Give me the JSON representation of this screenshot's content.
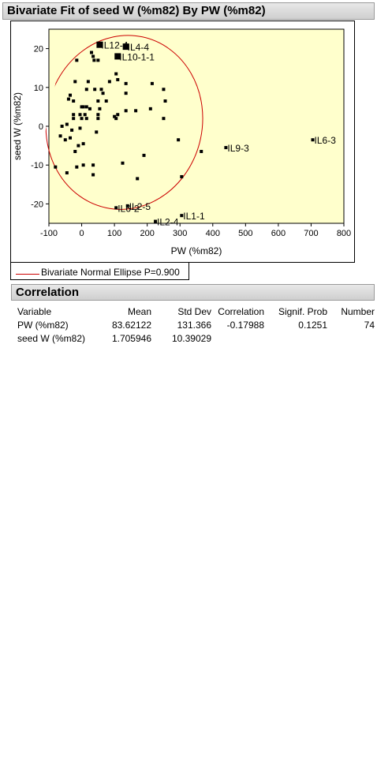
{
  "header": {
    "title": "Bivariate Fit of seed W  (%m82) By PW (%m82)"
  },
  "legend": {
    "label": "Bivariate Normal Ellipse P=0.900",
    "color": "#cc0000"
  },
  "correlation": {
    "title": "Correlation",
    "columns": [
      "Variable",
      "Mean",
      "Std Dev",
      "Correlation",
      "Signif. Prob",
      "Number"
    ],
    "rows": [
      [
        "PW (%m82)",
        "83.62122",
        "131.366",
        "-0.17988",
        "0.1251",
        "74"
      ],
      [
        "seed W  (%m82)",
        "1.705946",
        "10.39029",
        "",
        "",
        ""
      ]
    ]
  },
  "chart_data": {
    "type": "scatter",
    "title": "",
    "xlabel": "PW (%m82)",
    "ylabel": "seed W  (%m82)",
    "xlim": [
      -100,
      800
    ],
    "ylim": [
      -25,
      25
    ],
    "xticks": [
      -100,
      0,
      100,
      200,
      300,
      400,
      500,
      600,
      700,
      800
    ],
    "yticks": [
      -20,
      -10,
      0,
      10,
      20
    ],
    "background": "#ffffcc",
    "marker_color": "#000000",
    "ellipse": {
      "label": "Bivariate Normal Ellipse P=0.900",
      "color": "#cc0000",
      "x_range": [
        -108,
        368
      ],
      "y_range": [
        -21.5,
        23.5
      ]
    },
    "points": [
      [
        -15,
        17
      ],
      [
        30,
        19
      ],
      [
        35,
        18
      ],
      [
        38,
        17
      ],
      [
        50,
        17
      ],
      [
        -20,
        11.5
      ],
      [
        20,
        11.5
      ],
      [
        85,
        11.5
      ],
      [
        110,
        12
      ],
      [
        105,
        13.5
      ],
      [
        135,
        11
      ],
      [
        215,
        11
      ],
      [
        15,
        9.5
      ],
      [
        40,
        9.5
      ],
      [
        60,
        9.5
      ],
      [
        65,
        8.5
      ],
      [
        135,
        8.5
      ],
      [
        250,
        9.5
      ],
      [
        -35,
        8
      ],
      [
        -40,
        7
      ],
      [
        -25,
        6.5
      ],
      [
        75,
        6.5
      ],
      [
        50,
        6.5
      ],
      [
        255,
        6.5
      ],
      [
        0,
        5
      ],
      [
        5,
        5
      ],
      [
        15,
        5
      ],
      [
        25,
        4.5
      ],
      [
        55,
        4.5
      ],
      [
        135,
        4
      ],
      [
        165,
        4
      ],
      [
        210,
        4.5
      ],
      [
        -25,
        3
      ],
      [
        -5,
        3
      ],
      [
        10,
        3
      ],
      [
        50,
        3
      ],
      [
        100,
        2.5
      ],
      [
        105,
        2
      ],
      [
        110,
        3
      ],
      [
        250,
        2
      ],
      [
        -25,
        2
      ],
      [
        0,
        2
      ],
      [
        15,
        2
      ],
      [
        50,
        2
      ],
      [
        -60,
        0
      ],
      [
        -45,
        0.5
      ],
      [
        -30,
        -1
      ],
      [
        -5,
        -0.5
      ],
      [
        45,
        -1.5
      ],
      [
        -65,
        -2.5
      ],
      [
        -35,
        -3
      ],
      [
        -50,
        -3.5
      ],
      [
        295,
        -3.5
      ],
      [
        -10,
        -5
      ],
      [
        5,
        -4.5
      ],
      [
        -20,
        -6.5
      ],
      [
        190,
        -7.5
      ],
      [
        125,
        -9.5
      ],
      [
        -80,
        -10.5
      ],
      [
        -15,
        -10.5
      ],
      [
        5,
        -10
      ],
      [
        35,
        -10
      ],
      [
        -45,
        -12
      ],
      [
        35,
        -12.5
      ],
      [
        170,
        -13.5
      ],
      [
        305,
        -13
      ],
      [
        365,
        -6.5
      ]
    ],
    "big_points": [
      [
        55,
        21
      ],
      [
        135,
        20.5
      ],
      [
        110,
        18
      ]
    ],
    "labeled_points": [
      {
        "x": 55,
        "y": 21,
        "label": "IL12-4"
      },
      {
        "x": 135,
        "y": 20.5,
        "label": "IL4-4"
      },
      {
        "x": 110,
        "y": 18,
        "label": "IL10-1-1"
      },
      {
        "x": 440,
        "y": -5.5,
        "label": "IL9-3"
      },
      {
        "x": 705,
        "y": -3.5,
        "label": "IL6-3"
      },
      {
        "x": 140,
        "y": -20.5,
        "label": "IL2-5"
      },
      {
        "x": 105,
        "y": -21,
        "label": "IL6-2"
      },
      {
        "x": 225,
        "y": -24.5,
        "label": "IL2-4"
      },
      {
        "x": 305,
        "y": -23,
        "label": "IL1-1"
      }
    ]
  }
}
